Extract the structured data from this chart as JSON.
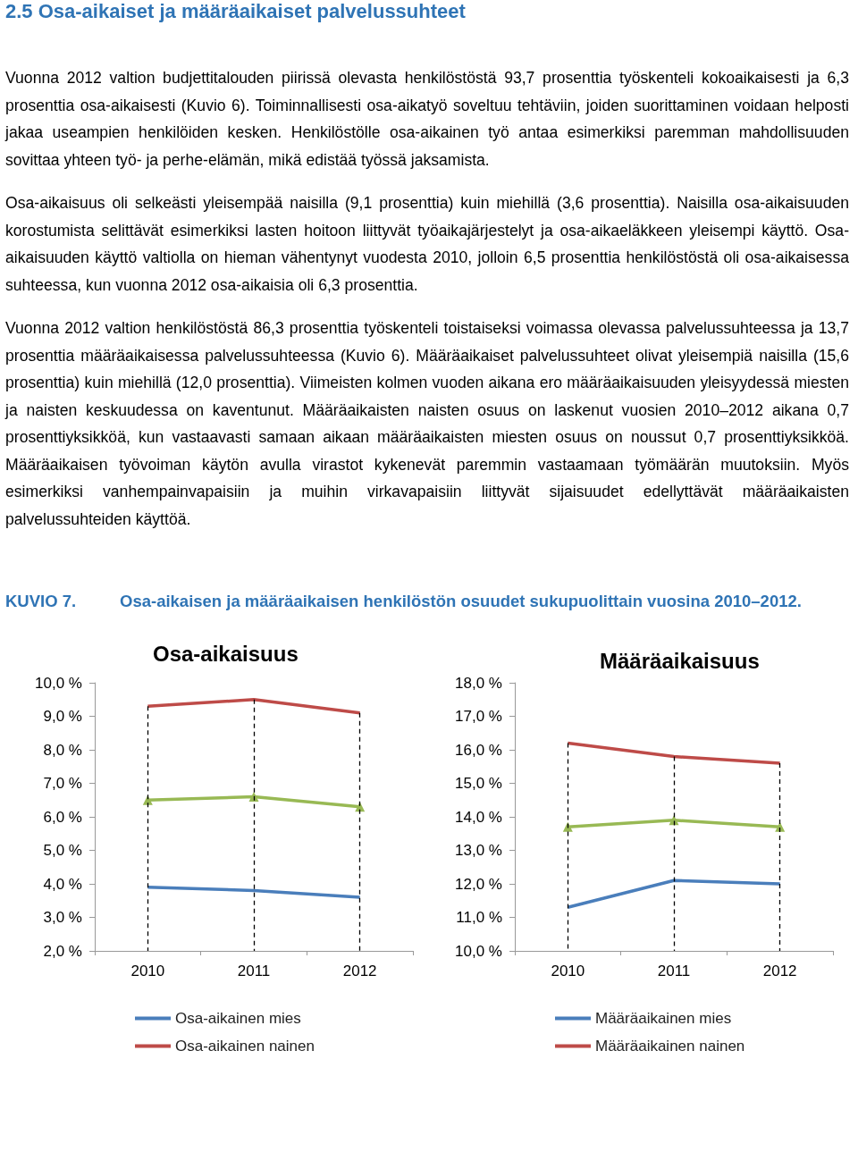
{
  "chart_data": [
    {
      "type": "line",
      "title": "Osa-aikaisuus",
      "categories": [
        "2010",
        "2011",
        "2012"
      ],
      "ylim": [
        2,
        10
      ],
      "yticks": [
        {
          "value": 2,
          "label": "2,0 %"
        },
        {
          "value": 3,
          "label": "3,0 %"
        },
        {
          "value": 4,
          "label": "4,0 %"
        },
        {
          "value": 5,
          "label": "5,0 %"
        },
        {
          "value": 6,
          "label": "6,0 %"
        },
        {
          "value": 7,
          "label": "7,0 %"
        },
        {
          "value": 8,
          "label": "8,0 %"
        },
        {
          "value": 9,
          "label": "9,0 %"
        },
        {
          "value": 10,
          "label": "10,0 %"
        }
      ],
      "grid": "x",
      "legend": "bottom left",
      "series": [
        {
          "name": "Osa-aikainen mies",
          "color": "#4a7ebb",
          "marker": "none",
          "values": [
            3.9,
            3.8,
            3.6
          ]
        },
        {
          "name": "Osa-aikainen nainen",
          "color": "#be4b48",
          "marker": "none",
          "values": [
            9.3,
            9.5,
            9.1
          ]
        },
        {
          "color": "#98b954",
          "marker": "triangle",
          "values": [
            6.5,
            6.6,
            6.3
          ]
        }
      ],
      "annotations": [
        "2.5 Osa-aikaiset ja määräaikaiset palvelussuhteet",
        "Vuonna 2012 valtion budjettitalouden piirissä olevasta henkilöstöstä 93,7 prosenttia työskenteli kokoaikaisesti ja 6,3 prosenttia osa-aikaisesti (Kuvio 6). Toiminnallisesti osa-aikatyö soveltuu tehtäviin, joiden suorittaminen voidaan helposti jakaa useampien henkilöiden kesken. Henkilöstölle osa-aikainen työ antaa esimerkiksi paremman mahdollisuuden sovittaa yhteen työ- ja perhe-elämän, mikä edistää työssä jaksamista.",
        "Osa-aikaisuus oli selkeästi yleisempää naisilla (9,1 prosenttia) kuin miehillä (3,6 prosenttia). Naisilla osa-aikaisuuden korostumista selittävät esimerkiksi lasten hoitoon liittyvät työaikajärjestelyt ja osa-aikaeläkkeen yleisempi käyttö. Osa-aikaisuuden käyttö valtiolla on hieman vähentynyt vuodesta 2010, jolloin 6,5 prosenttia henkilöstöstä oli osa-aikaisessa suhteessa, kun vuonna 2012 osa-aikaisia oli 6,3 prosenttia.",
        "Vuonna 2012 valtion henkilöstöstä 86,3 prosenttia työskenteli toistaiseksi voimassa olevassa palvelussuhteessa ja 13,7 prosenttia määräaikaisessa palvelussuhteessa (Kuvio 6). Määräaikaiset palvelussuhteet olivat yleisempiä naisilla (15,6 prosenttia) kuin miehillä (12,0 prosenttia). Viimeisten kolmen vuoden aikana ero määräaikaisuuden yleisyydessä miesten ja naisten keskuudessa on kaventunut. Määräaikaisten naisten osuus on laskenut vuosien 2010–2012 aikana 0,7 prosenttiyksikköä, kun vastaavasti samaan aikaan määräaikaisten miesten osuus on noussut 0,7 prosenttiyksikköä. Määräaikaisen työvoiman käytön avulla virastot kykenevät paremmin vastaamaan työmäärän muutoksiin. Myös esimerkiksi vanhempainvapaisiin ja muihin virkavapaisiin liittyvät sijaisuudet edellyttävät määräaikaisten palvelussuhteiden käyttöä.",
        "KUVIO 7.",
        "Osa-aikaisen ja määräaikaisen henkilöstön osuudet sukupuolittain vuosina 2010–2012."
      ]
    },
    {
      "type": "line",
      "title": "Määräaikaisuus",
      "categories": [
        "2010",
        "2011",
        "2012"
      ],
      "ylim": [
        10,
        18
      ],
      "yticks": [
        {
          "value": 10,
          "label": "10,0 %"
        },
        {
          "value": 11,
          "label": "11,0 %"
        },
        {
          "value": 12,
          "label": "12,0 %"
        },
        {
          "value": 13,
          "label": "13,0 %"
        },
        {
          "value": 14,
          "label": "14,0 %"
        },
        {
          "value": 15,
          "label": "15,0 %"
        },
        {
          "value": 16,
          "label": "16,0 %"
        },
        {
          "value": 17,
          "label": "17,0 %"
        },
        {
          "value": 18,
          "label": "18,0 %"
        }
      ],
      "grid": "x",
      "legend": "bottom left",
      "series": [
        {
          "name": "Määräaikainen mies",
          "color": "#4a7ebb",
          "marker": "none",
          "values": [
            11.3,
            12.1,
            12.0
          ]
        },
        {
          "name": "Määräaikainen nainen",
          "color": "#be4b48",
          "marker": "none",
          "values": [
            16.2,
            15.8,
            15.6
          ]
        },
        {
          "color": "#98b954",
          "marker": "triangle",
          "values": [
            13.7,
            13.9,
            13.7
          ]
        }
      ]
    }
  ]
}
